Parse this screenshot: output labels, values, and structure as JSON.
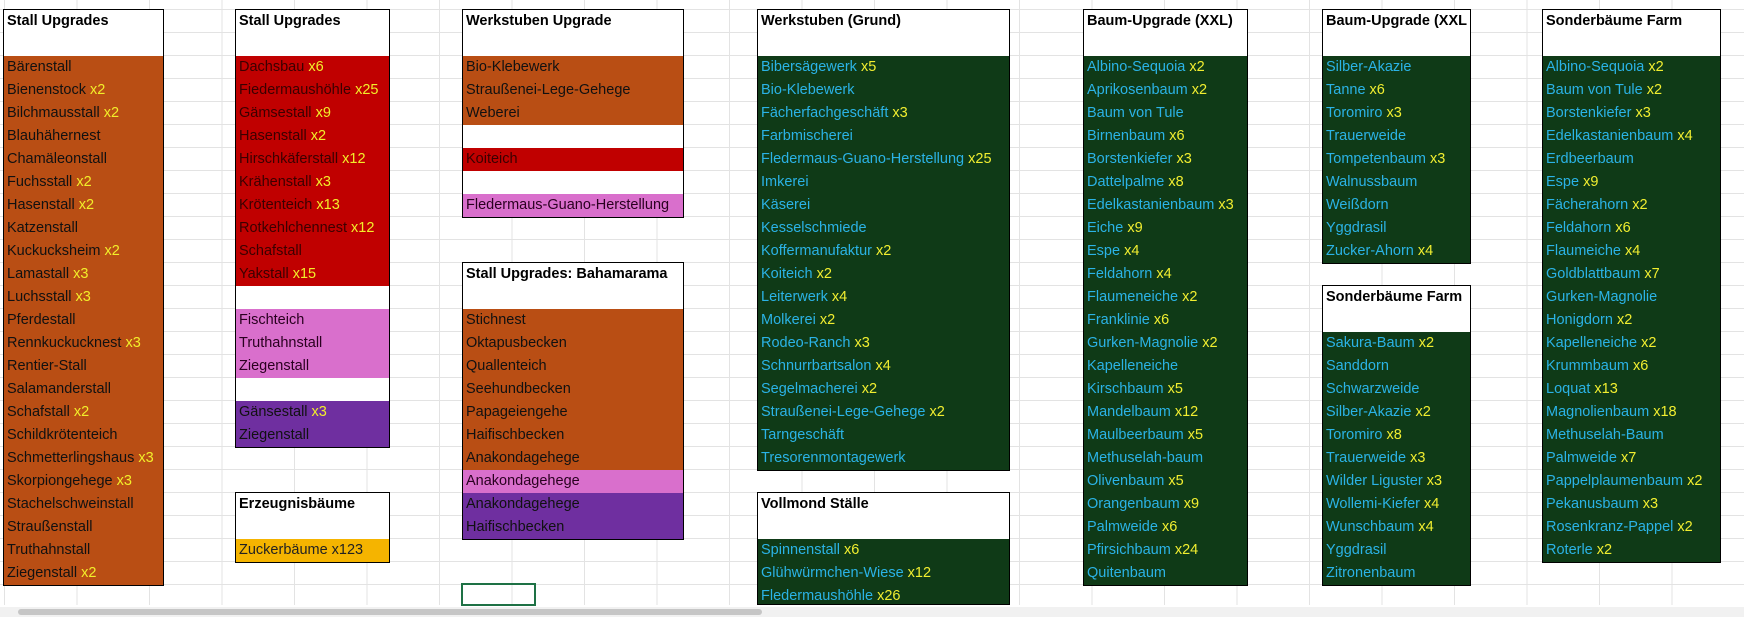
{
  "blocks": [
    {
      "title": "Stall Upgrades",
      "rows": [
        {
          "name": "Bärenstall",
          "count": "",
          "color": "orange"
        },
        {
          "name": "Bienenstock",
          "count": "x2",
          "color": "orange"
        },
        {
          "name": "Bilchmausstall",
          "count": "x2",
          "color": "orange"
        },
        {
          "name": "Blauhähernest",
          "count": "",
          "color": "orange"
        },
        {
          "name": "Chamäleonstall",
          "count": "",
          "color": "orange"
        },
        {
          "name": "Fuchsstall",
          "count": "x2",
          "color": "orange"
        },
        {
          "name": "Hasenstall",
          "count": "x2",
          "color": "orange"
        },
        {
          "name": "Katzenstall",
          "count": "",
          "color": "orange"
        },
        {
          "name": "Kuckucksheim",
          "count": "x2",
          "color": "orange"
        },
        {
          "name": "Lamastall",
          "count": "x3",
          "color": "orange"
        },
        {
          "name": "Luchsstall",
          "count": "x3",
          "color": "orange"
        },
        {
          "name": "Pferdestall",
          "count": "",
          "color": "orange"
        },
        {
          "name": "Rennkuckucknest",
          "count": "x3",
          "color": "orange"
        },
        {
          "name": "Rentier-Stall",
          "count": "",
          "color": "orange"
        },
        {
          "name": "Salamanderstall",
          "count": "",
          "color": "orange"
        },
        {
          "name": "Schafstall",
          "count": "x2",
          "color": "orange"
        },
        {
          "name": "Schildkrötenteich",
          "count": "",
          "color": "orange"
        },
        {
          "name": "Schmetterlingshaus",
          "count": "x3",
          "color": "orange"
        },
        {
          "name": "Skorpiongehege",
          "count": "x3",
          "color": "orange"
        },
        {
          "name": "Stachelschweinstall",
          "count": "",
          "color": "orange"
        },
        {
          "name": "Straußenstall",
          "count": "",
          "color": "orange"
        },
        {
          "name": "Truthahnstall",
          "count": "",
          "color": "orange"
        },
        {
          "name": "Ziegenstall",
          "count": "x2",
          "color": "orange"
        }
      ]
    },
    {
      "title": "Stall Upgrades",
      "rows": [
        {
          "name": "Dachsbau",
          "count": "x6",
          "color": "red"
        },
        {
          "name": "Fiedermaushöhle",
          "count": "x25",
          "color": "red"
        },
        {
          "name": "Gämsestall",
          "count": "x9",
          "color": "red"
        },
        {
          "name": "Hasenstall",
          "count": "x2",
          "color": "red"
        },
        {
          "name": "Hirschkäferstall",
          "count": "x12",
          "color": "red"
        },
        {
          "name": "Krähenstall",
          "count": "x3",
          "color": "red"
        },
        {
          "name": "Krötenteich",
          "count": "x13",
          "color": "red"
        },
        {
          "name": "Rotkehlchennest",
          "count": "x12",
          "color": "red"
        },
        {
          "name": "Schafstall",
          "count": "",
          "color": "red"
        },
        {
          "name": "Yakstall",
          "count": "x15",
          "color": "red"
        },
        {
          "name": "",
          "count": "",
          "color": "white"
        },
        {
          "name": "Fischteich",
          "count": "",
          "color": "pink"
        },
        {
          "name": "Truthahnstall",
          "count": "",
          "color": "pink"
        },
        {
          "name": "Ziegenstall",
          "count": "",
          "color": "pink"
        },
        {
          "name": "",
          "count": "",
          "color": "white"
        },
        {
          "name": "Gänsestall",
          "count": "x3",
          "color": "purple2"
        },
        {
          "name": "Ziegenstall",
          "count": "",
          "color": "purple2"
        }
      ]
    },
    {
      "title": "Werkstuben Upgrade",
      "rows": [
        {
          "name": "Bio-Klebewerk",
          "count": "",
          "color": "orange"
        },
        {
          "name": "Straußenei-Lege-Gehege",
          "count": "",
          "color": "orange"
        },
        {
          "name": "Weberei",
          "count": "",
          "color": "orange"
        },
        {
          "name": "",
          "count": "",
          "color": "white"
        },
        {
          "name": "Koiteich",
          "count": "",
          "color": "red"
        },
        {
          "name": "",
          "count": "",
          "color": "white"
        },
        {
          "name": "Fledermaus-Guano-Herstellung",
          "count": "",
          "color": "pink"
        }
      ]
    },
    {
      "title": "Stall Upgrades:  Bahamarama",
      "rows": [
        {
          "name": "Stichnest",
          "count": "",
          "color": "orange"
        },
        {
          "name": "Oktapusbecken",
          "count": "",
          "color": "orange"
        },
        {
          "name": "Quallenteich",
          "count": "",
          "color": "orange"
        },
        {
          "name": "Seehundbecken",
          "count": "",
          "color": "orange"
        },
        {
          "name": "Papageiengehe",
          "count": "",
          "color": "orange"
        },
        {
          "name": "Haifischbecken",
          "count": "",
          "color": "orange"
        },
        {
          "name": "Anakondagehege",
          "count": "",
          "color": "orange"
        },
        {
          "name": "Anakondagehege",
          "count": "",
          "color": "pink"
        },
        {
          "name": "Anakondagehege",
          "count": "",
          "color": "purple2"
        },
        {
          "name": "Haifischbecken",
          "count": "",
          "color": "purple2"
        }
      ]
    },
    {
      "title": "Erzeugnisbäume",
      "rows": [
        {
          "name": "Zuckerbäume x123",
          "count": "",
          "color": "gold"
        }
      ]
    },
    {
      "title": "Werkstuben (Grund)",
      "rows": [
        {
          "name": "Bibersägewerk",
          "count": "x5",
          "color": "green"
        },
        {
          "name": "Bio-Klebewerk",
          "count": "",
          "color": "green"
        },
        {
          "name": "Fächerfachgeschäft",
          "count": "x3",
          "color": "green"
        },
        {
          "name": "Farbmischerei",
          "count": "",
          "color": "green"
        },
        {
          "name": "Fledermaus-Guano-Herstellung",
          "count": "x25",
          "color": "green"
        },
        {
          "name": "Imkerei",
          "count": "",
          "color": "green"
        },
        {
          "name": "Käserei",
          "count": "",
          "color": "green"
        },
        {
          "name": "Kesselschmiede",
          "count": "",
          "color": "green"
        },
        {
          "name": "Koffermanufaktur",
          "count": "x2",
          "color": "green"
        },
        {
          "name": "Koiteich",
          "count": "x2",
          "color": "green"
        },
        {
          "name": "Leiterwerk",
          "count": "x4",
          "color": "green"
        },
        {
          "name": "Molkerei",
          "count": "x2",
          "color": "green"
        },
        {
          "name": "Rodeo-Ranch",
          "count": "x3",
          "color": "green"
        },
        {
          "name": "Schnurrbartsalon",
          "count": "x4",
          "color": "green"
        },
        {
          "name": "Segelmacherei",
          "count": "x2",
          "color": "green"
        },
        {
          "name": "Straußenei-Lege-Gehege",
          "count": "x2",
          "color": "green"
        },
        {
          "name": "Tarngeschäft",
          "count": "",
          "color": "green"
        },
        {
          "name": "Tresorenmontagewerk",
          "count": "",
          "color": "green"
        }
      ]
    },
    {
      "title": "Vollmond Ställe",
      "rows": [
        {
          "name": "Spinnenstall",
          "count": "x6",
          "color": "green"
        },
        {
          "name": "Glühwürmchen-Wiese",
          "count": "x12",
          "color": "green"
        },
        {
          "name": "Fledermaushöhle",
          "count": "x26",
          "color": "green"
        }
      ]
    },
    {
      "title": "Baum-Upgrade (XXL)",
      "rows": [
        {
          "name": "Albino-Sequoia",
          "count": "x2",
          "color": "green"
        },
        {
          "name": "Aprikosenbaum",
          "count": "x2",
          "color": "green"
        },
        {
          "name": "Baum von Tule",
          "count": "",
          "color": "green"
        },
        {
          "name": "Birnenbaum",
          "count": "x6",
          "color": "green"
        },
        {
          "name": "Borstenkiefer",
          "count": "x3",
          "color": "green"
        },
        {
          "name": "Dattelpalme",
          "count": "x8",
          "color": "green"
        },
        {
          "name": "Edelkastanienbaum",
          "count": "x3",
          "color": "green"
        },
        {
          "name": "Eiche",
          "count": "x9",
          "color": "green"
        },
        {
          "name": "Espe",
          "count": "x4",
          "color": "green"
        },
        {
          "name": "Feldahorn",
          "count": "x4",
          "color": "green"
        },
        {
          "name": "Flaumeneiche",
          "count": "x2",
          "color": "green"
        },
        {
          "name": "Franklinie",
          "count": "x6",
          "color": "green"
        },
        {
          "name": "Gurken-Magnolie",
          "count": "x2",
          "color": "green"
        },
        {
          "name": "Kapelleneiche",
          "count": "",
          "color": "green"
        },
        {
          "name": "Kirschbaum",
          "count": "x5",
          "color": "green"
        },
        {
          "name": "Mandelbaum",
          "count": "x12",
          "color": "green"
        },
        {
          "name": "Maulbeerbaum",
          "count": "x5",
          "color": "green"
        },
        {
          "name": "Methuselah-baum",
          "count": "",
          "color": "green"
        },
        {
          "name": "Olivenbaum",
          "count": "x5",
          "color": "green"
        },
        {
          "name": "Orangenbaum",
          "count": "x9",
          "color": "green"
        },
        {
          "name": "Palmweide",
          "count": "x6",
          "color": "green"
        },
        {
          "name": "Pfirsichbaum",
          "count": "x24",
          "color": "green"
        },
        {
          "name": "Quitenbaum",
          "count": "",
          "color": "green"
        }
      ]
    },
    {
      "title": "Baum-Upgrade (XXL",
      "rows": [
        {
          "name": "Silber-Akazie",
          "count": "",
          "color": "green"
        },
        {
          "name": "Tanne",
          "count": "x6",
          "color": "green"
        },
        {
          "name": "Toromiro",
          "count": "x3",
          "color": "green"
        },
        {
          "name": "Trauerweide",
          "count": "",
          "color": "green"
        },
        {
          "name": "Tompetenbaum",
          "count": "x3",
          "color": "green"
        },
        {
          "name": "Walnussbaum",
          "count": "",
          "color": "green"
        },
        {
          "name": "Weißdorn",
          "count": "",
          "color": "green"
        },
        {
          "name": "Yggdrasil",
          "count": "",
          "color": "green"
        },
        {
          "name": "Zucker-Ahorn",
          "count": "x4",
          "color": "green"
        }
      ]
    },
    {
      "title": "Sonderbäume Farm",
      "rows": [
        {
          "name": "Sakura-Baum",
          "count": "x2",
          "color": "green"
        },
        {
          "name": "Sanddorn",
          "count": "",
          "color": "green"
        },
        {
          "name": "Schwarzweide",
          "count": "",
          "color": "green"
        },
        {
          "name": "Silber-Akazie",
          "count": "x2",
          "color": "green"
        },
        {
          "name": "Toromiro",
          "count": "x8",
          "color": "green"
        },
        {
          "name": "Trauerweide",
          "count": "x3",
          "color": "green"
        },
        {
          "name": "Wilder Liguster",
          "count": "x3",
          "color": "green"
        },
        {
          "name": "Wollemi-Kiefer",
          "count": "x4",
          "color": "green"
        },
        {
          "name": "Wunschbaum",
          "count": "x4",
          "color": "green"
        },
        {
          "name": "Yggdrasil",
          "count": "",
          "color": "green"
        },
        {
          "name": "Zitronenbaum",
          "count": "",
          "color": "green"
        }
      ]
    },
    {
      "title": "Sonderbäume Farm",
      "rows": [
        {
          "name": "Albino-Sequoia",
          "count": "x2",
          "color": "green"
        },
        {
          "name": "Baum von Tule",
          "count": "x2",
          "color": "green"
        },
        {
          "name": "Borstenkiefer",
          "count": "x3",
          "color": "green"
        },
        {
          "name": "Edelkastanienbaum",
          "count": "x4",
          "color": "green"
        },
        {
          "name": "Erdbeerbaum",
          "count": "",
          "color": "green"
        },
        {
          "name": "Espe",
          "count": "x9",
          "color": "green"
        },
        {
          "name": "Fächerahorn",
          "count": "x2",
          "color": "green"
        },
        {
          "name": "Feldahorn",
          "count": "x6",
          "color": "green"
        },
        {
          "name": "Flaumeiche",
          "count": "x4",
          "color": "green"
        },
        {
          "name": "Goldblattbaum",
          "count": "x7",
          "color": "green"
        },
        {
          "name": "Gurken-Magnolie",
          "count": "",
          "color": "green"
        },
        {
          "name": "Honigdorn",
          "count": "x2",
          "color": "green"
        },
        {
          "name": "Kapelleneiche",
          "count": "x2",
          "color": "green"
        },
        {
          "name": "Krummbaum",
          "count": "x6",
          "color": "green"
        },
        {
          "name": "Loquat",
          "count": "x13",
          "color": "green"
        },
        {
          "name": "Magnolienbaum",
          "count": "x18",
          "color": "green"
        },
        {
          "name": "Methuselah-Baum",
          "count": "",
          "color": "green"
        },
        {
          "name": "Palmweide",
          "count": "x7",
          "color": "green"
        },
        {
          "name": "Pappelplaumenbaum",
          "count": "x2",
          "color": "green"
        },
        {
          "name": "Pekanusbaum",
          "count": "x3",
          "color": "green"
        },
        {
          "name": "Rosenkranz-Pappel",
          "count": "x2",
          "color": "green"
        },
        {
          "name": "Roterle",
          "count": "x2",
          "color": "green"
        }
      ]
    }
  ]
}
